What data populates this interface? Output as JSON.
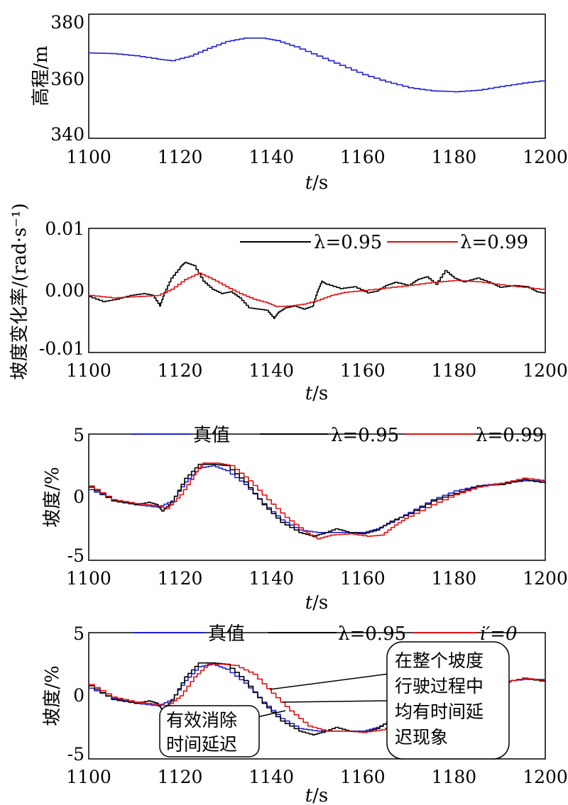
{
  "chart_data": [
    {
      "type": "line",
      "xlabel": "t/s",
      "ylabel": "高程/m",
      "xlim": [
        1100,
        1200
      ],
      "ylim": [
        340,
        380
      ],
      "xticks": [
        "1100",
        "1120",
        "1140",
        "1160",
        "1180",
        "1200"
      ],
      "yticks": [
        "340",
        "360",
        "380"
      ],
      "grid": false,
      "legend": [],
      "series": [
        {
          "name": "",
          "color": "#1f1fd6",
          "x": [
            1100,
            1105,
            1110,
            1115,
            1118,
            1122,
            1126,
            1130,
            1134,
            1138,
            1141,
            1145,
            1150,
            1155,
            1160,
            1165,
            1170,
            1175,
            1180,
            1185,
            1190,
            1195,
            1200
          ],
          "y": [
            367.5,
            367.3,
            366.6,
            365.5,
            365.0,
            366.5,
            369.0,
            371.2,
            372.3,
            372.3,
            371.5,
            369.5,
            366.5,
            363.5,
            360.5,
            358.2,
            356.3,
            355.3,
            355.0,
            355.5,
            356.7,
            357.8,
            358.7
          ]
        }
      ]
    },
    {
      "type": "line",
      "xlabel": "t/s",
      "ylabel": "坡度变化率/(rad·s⁻¹)",
      "xlim": [
        1100,
        1200
      ],
      "ylim": [
        -0.01,
        0.01
      ],
      "xticks": [
        "1100",
        "1120",
        "1140",
        "1160",
        "1180",
        "1200"
      ],
      "yticks": [
        "-0.01",
        "0.00",
        "0.01"
      ],
      "grid": false,
      "legend": [
        "λ=0.95",
        "λ=0.99"
      ],
      "series": [
        {
          "name": "λ=0.95",
          "color": "#000000",
          "x": [
            1100,
            1103,
            1106,
            1109,
            1112,
            1114,
            1115.5,
            1116.5,
            1118,
            1120,
            1121,
            1123,
            1125,
            1127,
            1129,
            1131,
            1133,
            1135,
            1137,
            1139,
            1140.5,
            1141.5,
            1143,
            1145,
            1147,
            1149,
            1150,
            1151,
            1152,
            1155,
            1158,
            1161,
            1163,
            1165,
            1167,
            1170,
            1172,
            1174,
            1176,
            1178,
            1180,
            1182,
            1185,
            1188,
            1190,
            1193,
            1196,
            1198,
            1200
          ],
          "y": [
            -0.001,
            -0.0018,
            -0.0014,
            -0.0008,
            -0.0005,
            -0.0008,
            -0.0025,
            -0.0004,
            0.002,
            0.0038,
            0.0045,
            0.004,
            0.0015,
            0.0002,
            -0.0005,
            -0.0002,
            -0.0012,
            -0.0028,
            -0.003,
            -0.0032,
            -0.0045,
            -0.0035,
            -0.0028,
            -0.0025,
            -0.003,
            -0.0025,
            -0.0002,
            0.0015,
            0.001,
            0.0003,
            0.0006,
            -0.0004,
            -0.0001,
            0.0008,
            0.0013,
            0.0008,
            0.0018,
            0.0022,
            0.001,
            0.0032,
            0.002,
            0.0014,
            0.002,
            0.0012,
            0.0005,
            0.0008,
            0.0006,
            -0.0002,
            -0.0005
          ]
        },
        {
          "name": "λ=0.99",
          "color": "#e01010",
          "x": [
            1100,
            1105,
            1110,
            1115,
            1118,
            1121,
            1124,
            1127,
            1130,
            1133,
            1136,
            1139,
            1141,
            1144,
            1147,
            1150,
            1153,
            1156,
            1160,
            1165,
            1170,
            1175,
            1180,
            1185,
            1190,
            1195,
            1200
          ],
          "y": [
            -0.0008,
            -0.0012,
            -0.001,
            -0.0008,
            0.0002,
            0.0018,
            0.0028,
            0.0018,
            0.0006,
            -0.0005,
            -0.0014,
            -0.002,
            -0.0026,
            -0.0025,
            -0.0022,
            -0.0016,
            -0.0008,
            -0.0003,
            0.0,
            0.0004,
            0.0008,
            0.0013,
            0.0016,
            0.0014,
            0.0009,
            0.0005,
            0.0001
          ]
        }
      ]
    },
    {
      "type": "line",
      "xlabel": "t/s",
      "ylabel": "坡度/%",
      "xlim": [
        1100,
        1200
      ],
      "ylim": [
        -5,
        5
      ],
      "xticks": [
        "1100",
        "1120",
        "1140",
        "1160",
        "1180",
        "1200"
      ],
      "yticks": [
        "-5",
        "0",
        "5"
      ],
      "grid": false,
      "legend": [
        "真值",
        "λ=0.95",
        "λ=0.99"
      ],
      "series": [
        {
          "name": "真值",
          "color": "#1f1fd6",
          "x": [
            1100,
            1105,
            1110,
            1115,
            1118,
            1121,
            1124,
            1127,
            1130,
            1134,
            1138,
            1142,
            1146,
            1150,
            1155,
            1160,
            1163,
            1166,
            1170,
            1175,
            1180,
            1185,
            1190,
            1195,
            1200
          ],
          "y": [
            0.6,
            -0.2,
            -0.6,
            -0.8,
            -0.3,
            1.2,
            2.3,
            2.5,
            2.1,
            1.0,
            -0.5,
            -1.8,
            -2.6,
            -2.8,
            -2.8,
            -2.8,
            -2.5,
            -2.0,
            -1.2,
            -0.2,
            0.5,
            0.9,
            1.1,
            1.3,
            1.3
          ]
        },
        {
          "name": "λ=0.95",
          "color": "#000000",
          "x": [
            1100,
            1105,
            1110,
            1113,
            1115,
            1116,
            1118,
            1121,
            1124,
            1127,
            1130,
            1134,
            1138,
            1142,
            1146,
            1149,
            1151,
            1154,
            1157,
            1160,
            1163,
            1166,
            1170,
            1175,
            1180,
            1185,
            1190,
            1195,
            1200
          ],
          "y": [
            0.8,
            -0.3,
            -0.6,
            -0.4,
            -0.6,
            -1.1,
            -0.4,
            1.5,
            2.6,
            2.6,
            2.5,
            1.2,
            -0.6,
            -2.0,
            -2.8,
            -3.1,
            -2.9,
            -2.5,
            -2.8,
            -2.9,
            -2.6,
            -1.9,
            -1.3,
            -0.3,
            0.3,
            0.9,
            1.0,
            1.4,
            1.1
          ]
        },
        {
          "name": "λ=0.99",
          "color": "#e01010",
          "x": [
            1100,
            1105,
            1110,
            1115,
            1117,
            1120,
            1123,
            1125,
            1128,
            1131,
            1135,
            1139,
            1143,
            1147,
            1150,
            1153,
            1157,
            1161,
            1164,
            1167,
            1170,
            1175,
            1180,
            1185,
            1190,
            1195,
            1200
          ],
          "y": [
            0.9,
            -0.2,
            -0.5,
            -0.7,
            -0.9,
            0.2,
            1.8,
            2.7,
            2.7,
            2.5,
            1.3,
            -0.2,
            -1.6,
            -2.7,
            -3.3,
            -3.0,
            -2.9,
            -3.1,
            -3.0,
            -2.2,
            -1.5,
            -0.6,
            0.2,
            0.8,
            1.1,
            1.5,
            1.3
          ]
        }
      ]
    },
    {
      "type": "line",
      "xlabel": "t/s",
      "ylabel": "坡度/%",
      "xlim": [
        1100,
        1200
      ],
      "ylim": [
        -5,
        5
      ],
      "xticks": [
        "1100",
        "1120",
        "1140",
        "1160",
        "1180",
        "1200"
      ],
      "yticks": [
        "-5",
        "0",
        "5"
      ],
      "grid": false,
      "legend": [
        "真值",
        "λ=0.95",
        "i′=0"
      ],
      "annotations": [
        "有效消除时间延迟",
        "在整个坡度行驶过程中均有时间延迟现象"
      ],
      "series": [
        {
          "name": "真值",
          "color": "#1f1fd6",
          "x": [
            1100,
            1105,
            1110,
            1115,
            1118,
            1121,
            1124,
            1127,
            1130,
            1134,
            1138,
            1142,
            1146,
            1150,
            1155,
            1160,
            1163,
            1166,
            1170,
            1175,
            1180,
            1185,
            1190,
            1195,
            1200
          ],
          "y": [
            0.6,
            -0.2,
            -0.6,
            -0.8,
            -0.3,
            1.2,
            2.3,
            2.5,
            2.1,
            1.0,
            -0.5,
            -1.8,
            -2.6,
            -2.8,
            -2.8,
            -2.8,
            -2.5,
            -2.0,
            -1.2,
            -0.2,
            0.5,
            0.9,
            1.1,
            1.3,
            1.3
          ]
        },
        {
          "name": "λ=0.95",
          "color": "#000000",
          "x": [
            1100,
            1105,
            1110,
            1113,
            1115,
            1116,
            1118,
            1121,
            1124,
            1127,
            1130,
            1134,
            1138,
            1142,
            1146,
            1149,
            1151,
            1154,
            1157,
            1160,
            1163,
            1166,
            1170,
            1175,
            1180,
            1185,
            1190,
            1195,
            1200
          ],
          "y": [
            0.8,
            -0.3,
            -0.6,
            -0.4,
            -0.6,
            -1.1,
            -0.4,
            1.5,
            2.6,
            2.6,
            2.5,
            1.2,
            -0.6,
            -2.0,
            -2.8,
            -3.1,
            -2.9,
            -2.5,
            -2.8,
            -2.9,
            -2.6,
            -1.9,
            -1.3,
            -0.3,
            0.3,
            0.9,
            1.0,
            1.4,
            1.1
          ]
        },
        {
          "name": "i′=0",
          "color": "#e01010",
          "x": [
            1100,
            1105,
            1110,
            1115,
            1117,
            1120,
            1123,
            1126,
            1129,
            1132,
            1136,
            1140,
            1144,
            1148,
            1152,
            1156,
            1160,
            1164,
            1168,
            1172,
            1176,
            1180,
            1185,
            1190,
            1195,
            1200
          ],
          "y": [
            0.9,
            -0.1,
            -0.5,
            -0.7,
            -0.8,
            0.0,
            1.5,
            2.5,
            2.5,
            2.4,
            1.7,
            0.2,
            -1.2,
            -2.4,
            -2.8,
            -2.8,
            -2.9,
            -2.7,
            -2.2,
            -1.5,
            -0.7,
            0.0,
            0.6,
            1.0,
            1.4,
            1.2
          ]
        }
      ]
    }
  ]
}
